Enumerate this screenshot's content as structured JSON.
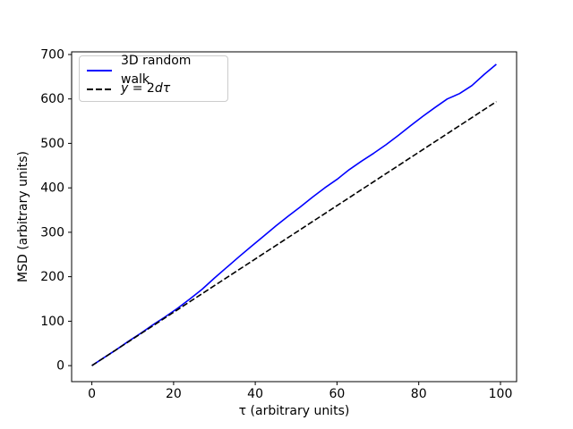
{
  "chart_data": {
    "type": "line",
    "title": "",
    "xlabel": "τ (arbitrary units)",
    "ylabel": "MSD (arbitrary units)",
    "xlim": [
      -4.95,
      103.95
    ],
    "ylim": [
      -36,
      706
    ],
    "x_ticks": [
      0,
      20,
      40,
      60,
      80,
      100
    ],
    "y_ticks": [
      0,
      100,
      200,
      300,
      400,
      500,
      600,
      700
    ],
    "grid": false,
    "background": "#ffffff",
    "spine_color": "#000000",
    "legend_position": "upper left",
    "series": [
      {
        "name": "3D random walk",
        "color": "#0000ff",
        "style": "solid",
        "x": [
          0,
          3,
          6,
          9,
          12,
          15,
          18,
          21,
          24,
          27,
          30,
          33,
          36,
          39,
          42,
          45,
          48,
          51,
          54,
          57,
          60,
          63,
          66,
          69,
          72,
          75,
          78,
          81,
          84,
          87,
          90,
          93,
          96,
          99
        ],
        "y": [
          0,
          18,
          36,
          55,
          73,
          92,
          110,
          129,
          150,
          172,
          197,
          221,
          245,
          268,
          291,
          314,
          336,
          357,
          379,
          400,
          419,
          441,
          460,
          478,
          497,
          518,
          540,
          561,
          581,
          600,
          612,
          630,
          655,
          678
        ]
      },
      {
        "name": "y = 2dτ",
        "color": "#000000",
        "style": "dashed",
        "x": [
          0,
          99
        ],
        "y": [
          0,
          594
        ]
      }
    ]
  },
  "legend": {
    "entries": [
      {
        "label": "3D random walk",
        "italic": false
      },
      {
        "label": "y = 2dτ",
        "italic": true,
        "parts": {
          "a": "y",
          "b": " = 2",
          "c": "dτ"
        }
      }
    ]
  },
  "axes": {
    "xlabel": "τ (arbitrary units)",
    "ylabel": "MSD (arbitrary units)"
  }
}
